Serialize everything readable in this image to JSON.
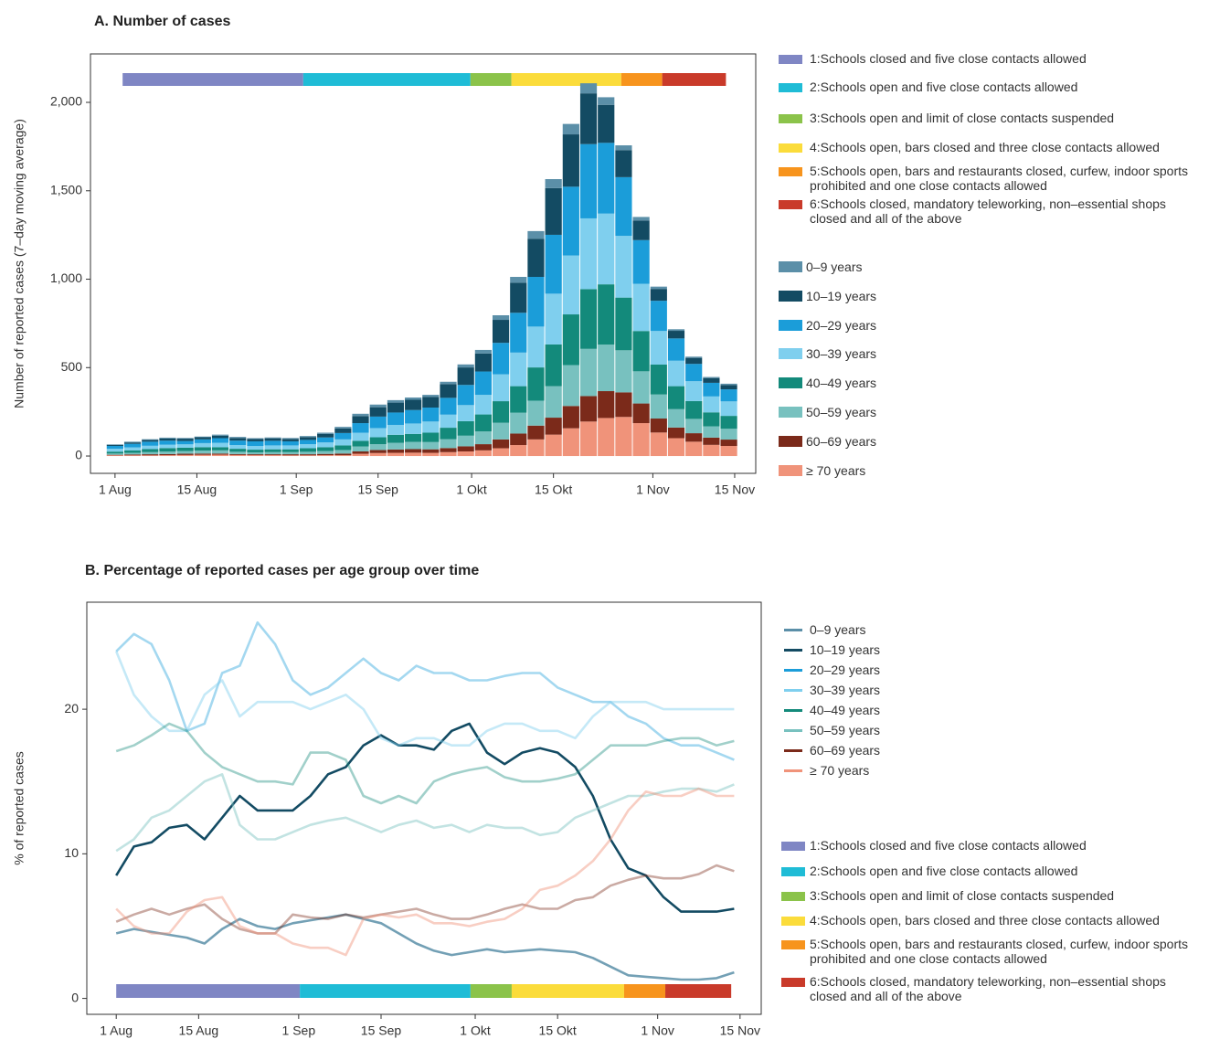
{
  "chart_data": [
    {
      "type": "bar",
      "stacked": true,
      "title": "A. Number of cases",
      "ylabel": "Number of reported cases (7–day moving average)",
      "xlim": [
        -4.2,
        109.6
      ],
      "ylim": [
        -98,
        2274
      ],
      "xticks": [
        {
          "value": 0,
          "label": "1 Aug"
        },
        {
          "value": 14,
          "label": "15 Aug"
        },
        {
          "value": 31,
          "label": "1 Sep"
        },
        {
          "value": 45,
          "label": "15 Sep"
        },
        {
          "value": 61,
          "label": "1 Okt"
        },
        {
          "value": 75,
          "label": "15 Okt"
        },
        {
          "value": 92,
          "label": "1 Nov"
        },
        {
          "value": 106,
          "label": "15 Nov"
        }
      ],
      "yticks": [
        0,
        500,
        {
          "value": 1000,
          "label": "1,000"
        },
        {
          "value": 1500,
          "label": "1,500"
        },
        {
          "value": 2000,
          "label": "2,000"
        }
      ],
      "phases": [
        {
          "name": "1:Schools closed and five close contacts allowed",
          "color": "#7f86c4",
          "start": 1.3,
          "end": 32.2
        },
        {
          "name": "2:Schools open and five close contacts allowed",
          "color": "#1fbcd6",
          "start": 32.2,
          "end": 60.8
        },
        {
          "name": "3:Schools open and limit of close contacts suspended",
          "color": "#8bc34a",
          "start": 60.8,
          "end": 67.8
        },
        {
          "name": "4:Schools open, bars closed and three close contacts allowed",
          "color": "#fbdc3b",
          "start": 67.8,
          "end": 86.6
        },
        {
          "name": "5:Schools open, bars and restaurants closed, curfew, indoor sports prohibited and one close contacts allowed",
          "color": "#f7941d",
          "start": 86.6,
          "end": 93.6
        },
        {
          "name": "6:Schools closed, mandatory teleworking, non–essential shops closed and all of the above",
          "color": "#c93a2a",
          "start": 93.6,
          "end": 104.5
        }
      ],
      "x": [
        0,
        3,
        6,
        9,
        12,
        15,
        18,
        21,
        24,
        27,
        30,
        33,
        36,
        39,
        42,
        45,
        48,
        51,
        54,
        57,
        60,
        63,
        66,
        69,
        72,
        75,
        78,
        81,
        84,
        87,
        90,
        93,
        96,
        99,
        102,
        105
      ],
      "series": [
        {
          "name": "≥ 70 years",
          "color": "#f0937a",
          "values": [
            4,
            4,
            4,
            5,
            6,
            7,
            8,
            6,
            5,
            5,
            4,
            4,
            5,
            5,
            13,
            17,
            18,
            19,
            18,
            22,
            26,
            32,
            44,
            62,
            94,
            121,
            157,
            195,
            215,
            221,
            186,
            133,
            101,
            81,
            63,
            57
          ]
        },
        {
          "name": "60–69 years",
          "color": "#7b2a1a",
          "values": [
            3,
            5,
            6,
            6,
            7,
            7,
            6,
            5,
            5,
            5,
            6,
            6,
            7,
            9,
            13,
            17,
            19,
            20,
            20,
            23,
            29,
            35,
            50,
            65,
            78,
            96,
            126,
            144,
            152,
            139,
            111,
            79,
            60,
            48,
            41,
            36
          ]
        },
        {
          "name": "50–59 years",
          "color": "#78c1bf",
          "values": [
            7,
            9,
            12,
            14,
            15,
            17,
            18,
            13,
            11,
            12,
            12,
            14,
            16,
            20,
            28,
            33,
            38,
            41,
            41,
            50,
            60,
            72,
            94,
            118,
            141,
            178,
            231,
            267,
            263,
            238,
            182,
            136,
            104,
            81,
            64,
            61
          ]
        },
        {
          "name": "40–49 years",
          "color": "#138a7b",
          "values": [
            11,
            14,
            17,
            20,
            19,
            19,
            18,
            17,
            15,
            16,
            16,
            20,
            22,
            26,
            32,
            39,
            45,
            45,
            53,
            65,
            82,
            96,
            122,
            150,
            188,
            236,
            287,
            338,
            341,
            298,
            228,
            169,
            130,
            101,
            79,
            73
          ]
        },
        {
          "name": "30–39 years",
          "color": "#7fcfee",
          "values": [
            16,
            17,
            19,
            19,
            19,
            23,
            25,
            21,
            21,
            22,
            22,
            23,
            27,
            34,
            46,
            52,
            56,
            59,
            63,
            74,
            91,
            111,
            152,
            190,
            231,
            287,
            333,
            400,
            400,
            349,
            267,
            190,
            144,
            112,
            90,
            82
          ]
        },
        {
          "name": "20–29 years",
          "color": "#1b9dd9",
          "values": [
            16,
            20,
            23,
            23,
            19,
            21,
            26,
            25,
            26,
            26,
            23,
            24,
            28,
            36,
            54,
            65,
            70,
            76,
            79,
            95,
            114,
            132,
            178,
            225,
            281,
            333,
            389,
            420,
            400,
            332,
            247,
            171,
            126,
            98,
            77,
            68
          ]
        },
        {
          "name": "10–19 years",
          "color": "#134b63",
          "values": [
            6,
            8,
            10,
            12,
            13,
            12,
            14,
            15,
            13,
            14,
            14,
            16,
            20,
            26,
            40,
            53,
            56,
            58,
            60,
            78,
            99,
            102,
            130,
            170,
            216,
            264,
            296,
            287,
            215,
            153,
            111,
            67,
            43,
            34,
            27,
            25
          ]
        },
        {
          "name": "0–9 years",
          "color": "#5b8fa8",
          "values": [
            3,
            4,
            4,
            5,
            4,
            4,
            6,
            6,
            5,
            5,
            5,
            6,
            7,
            9,
            13,
            15,
            14,
            13,
            12,
            13,
            17,
            20,
            26,
            33,
            43,
            51,
            59,
            57,
            43,
            27,
            20,
            13,
            9,
            7,
            6,
            7
          ]
        }
      ]
    },
    {
      "type": "line",
      "title": "B. Percentage of reported cases per age group over time",
      "ylabel": "% of reported cases",
      "xlim": [
        -5,
        109.6
      ],
      "ylim": [
        -1.1,
        27.4
      ],
      "xticks": [
        {
          "value": 0,
          "label": "1 Aug"
        },
        {
          "value": 14,
          "label": "15 Aug"
        },
        {
          "value": 31,
          "label": "1 Sep"
        },
        {
          "value": 45,
          "label": "15 Sep"
        },
        {
          "value": 61,
          "label": "1 Okt"
        },
        {
          "value": 75,
          "label": "15 Okt"
        },
        {
          "value": 92,
          "label": "1 Nov"
        },
        {
          "value": 106,
          "label": "15 Nov"
        }
      ],
      "yticks": [
        0,
        10,
        20
      ],
      "phases": [
        {
          "name": "1:Schools closed and five close contacts allowed",
          "color": "#7f86c4",
          "start": 0,
          "end": 31.2
        },
        {
          "name": "2:Schools open and five close contacts allowed",
          "color": "#1fbcd6",
          "start": 31.2,
          "end": 60.2
        },
        {
          "name": "3:Schools open and limit of close contacts suspended",
          "color": "#8bc34a",
          "start": 60.2,
          "end": 67.2
        },
        {
          "name": "4:Schools open, bars closed and three close contacts allowed",
          "color": "#fbdc3b",
          "start": 67.2,
          "end": 86.3
        },
        {
          "name": "5:Schools open, bars and restaurants closed, curfew, indoor sports prohibited and one close contacts allowed",
          "color": "#f7941d",
          "start": 86.3,
          "end": 93.3
        },
        {
          "name": "6:Schools closed, mandatory teleworking, non–essential shops closed and all of the above",
          "color": "#c93a2a",
          "start": 93.3,
          "end": 104.5
        }
      ],
      "x": [
        0,
        3,
        6,
        9,
        12,
        15,
        18,
        21,
        24,
        27,
        30,
        33,
        36,
        39,
        42,
        45,
        48,
        51,
        54,
        57,
        60,
        63,
        66,
        69,
        72,
        75,
        78,
        81,
        84,
        87,
        90,
        93,
        96,
        99,
        102,
        105
      ],
      "series": [
        {
          "name": "0–9 years",
          "color": "#5b8fa8",
          "opacity": 0.85,
          "values": [
            4.5,
            4.8,
            4.6,
            4.4,
            4.2,
            3.8,
            4.8,
            5.5,
            5,
            4.8,
            5.2,
            5.4,
            5.6,
            5.8,
            5.5,
            5.2,
            4.5,
            3.8,
            3.3,
            3,
            3.2,
            3.4,
            3.2,
            3.3,
            3.4,
            3.3,
            3.2,
            2.8,
            2.2,
            1.6,
            1.5,
            1.4,
            1.3,
            1.3,
            1.4,
            1.8
          ]
        },
        {
          "name": "10–19 years",
          "color": "#134b63",
          "opacity": 1,
          "values": [
            8.5,
            10.5,
            10.8,
            11.8,
            12,
            11,
            12.5,
            14,
            13,
            13,
            13,
            14,
            15.5,
            16,
            17.5,
            18.2,
            17.5,
            17.5,
            17.2,
            18.5,
            19,
            17,
            16.2,
            17,
            17.3,
            17,
            16,
            14,
            11,
            9,
            8.5,
            7,
            6,
            6,
            6,
            6.2
          ]
        },
        {
          "name": "20–29 years",
          "color": "#1b9dd9",
          "opacity": 0.4,
          "values": [
            24,
            25.2,
            24.5,
            22,
            18.5,
            19,
            22.5,
            23,
            26,
            24.5,
            22,
            21,
            21.5,
            22.5,
            23.5,
            22.5,
            22,
            23,
            22.5,
            22.5,
            22,
            22,
            22.3,
            22.5,
            22.5,
            21.5,
            21,
            20.5,
            20.5,
            19.5,
            19,
            18,
            17.5,
            17.5,
            17,
            16.5
          ]
        },
        {
          "name": "30–39 years",
          "color": "#7fcfee",
          "opacity": 0.45,
          "values": [
            24,
            21,
            19.5,
            18.5,
            18.5,
            21,
            22,
            19.5,
            20.5,
            20.5,
            20.5,
            20,
            20.5,
            21,
            20,
            18,
            17.5,
            18,
            18,
            17.5,
            17.5,
            18.5,
            19,
            19,
            18.5,
            18.5,
            18,
            19.5,
            20.5,
            20.5,
            20.5,
            20,
            20,
            20,
            20,
            20
          ]
        },
        {
          "name": "40–49 years",
          "color": "#138a7b",
          "opacity": 0.4,
          "values": [
            17.1,
            17.5,
            18.2,
            19,
            18.5,
            17,
            16,
            15.5,
            15,
            15,
            14.8,
            17,
            17,
            16.5,
            14,
            13.5,
            14,
            13.5,
            15,
            15.5,
            15.8,
            16,
            15.3,
            15,
            15,
            15.2,
            15.5,
            16.5,
            17.5,
            17.5,
            17.5,
            17.8,
            18,
            18,
            17.5,
            17.8
          ]
        },
        {
          "name": "50–59 years",
          "color": "#78c1bf",
          "opacity": 0.45,
          "values": [
            10.2,
            11,
            12.5,
            13,
            14,
            15,
            15.5,
            12,
            11,
            11,
            11.5,
            12,
            12.3,
            12.5,
            12,
            11.5,
            12,
            12.3,
            11.8,
            12,
            11.5,
            12,
            11.8,
            11.8,
            11.3,
            11.5,
            12.5,
            13,
            13.5,
            14,
            14,
            14.3,
            14.5,
            14.5,
            14.3,
            14.8
          ]
        },
        {
          "name": "60–69 years",
          "color": "#7b2a1a",
          "opacity": 0.4,
          "values": [
            5.3,
            5.8,
            6.2,
            5.8,
            6.2,
            6.5,
            5.5,
            4.8,
            4.5,
            4.5,
            5.8,
            5.6,
            5.5,
            5.8,
            5.6,
            5.8,
            6,
            6.2,
            5.8,
            5.5,
            5.5,
            5.8,
            6.2,
            6.5,
            6.2,
            6.2,
            6.8,
            7,
            7.8,
            8.2,
            8.5,
            8.3,
            8.3,
            8.6,
            9.2,
            8.8
          ]
        },
        {
          "name": "≥ 70 years",
          "color": "#f0937a",
          "opacity": 0.45,
          "values": [
            6.2,
            5,
            4.5,
            4.5,
            6,
            6.8,
            7,
            5,
            4.5,
            4.5,
            3.8,
            3.5,
            3.5,
            3,
            5.5,
            5.8,
            5.6,
            5.8,
            5.2,
            5.2,
            5,
            5.3,
            5.5,
            6.2,
            7.5,
            7.8,
            8.5,
            9.5,
            11,
            13,
            14.3,
            14,
            14,
            14.5,
            14,
            14
          ]
        }
      ]
    }
  ]
}
